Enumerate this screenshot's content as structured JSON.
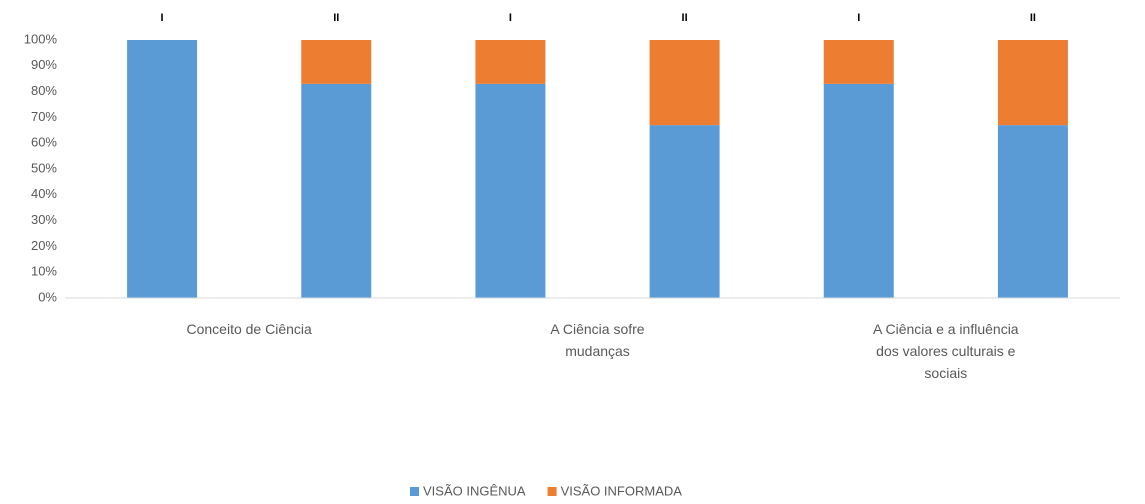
{
  "chart_data": {
    "type": "stacked_bar",
    "categories": [
      "I",
      "II",
      "I",
      "II",
      "I",
      "II"
    ],
    "groups": [
      "Conceito de Ciência",
      "A Ciência sofre mudanças",
      "A Ciência e a influência dos valores culturais e sociais"
    ],
    "series": [
      {
        "name": "VISÃO INGÊNUA",
        "color": "#5b9bd5",
        "values": [
          100,
          83,
          83,
          67,
          83,
          67
        ]
      },
      {
        "name": "VISÃO INFORMADA",
        "color": "#ed7d31",
        "values": [
          0,
          17,
          17,
          33,
          17,
          33
        ]
      }
    ],
    "ylim": [
      0,
      100
    ],
    "yticks": [
      {
        "value": 0,
        "label": "0%"
      },
      {
        "value": 10,
        "label": "10%"
      },
      {
        "value": 20,
        "label": "20%"
      },
      {
        "value": 30,
        "label": "30%"
      },
      {
        "value": 40,
        "label": "40%"
      },
      {
        "value": 50,
        "label": "50%"
      },
      {
        "value": 60,
        "label": "60%"
      },
      {
        "value": 70,
        "label": "70%"
      },
      {
        "value": 80,
        "label": "80%"
      },
      {
        "value": 90,
        "label": "90%"
      },
      {
        "value": 100,
        "label": "100%"
      }
    ],
    "legend": "bottom"
  }
}
